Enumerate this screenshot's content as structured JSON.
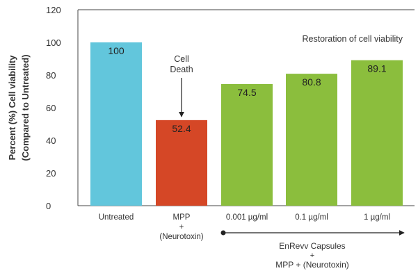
{
  "chart_data": {
    "type": "bar",
    "ylabel_line1": "Percent (%) Cell viability",
    "ylabel_line2": "(Compared to Untreated)",
    "ylim": [
      0,
      120
    ],
    "yticks": [
      "0",
      "20",
      "40",
      "60",
      "80",
      "100",
      "120"
    ],
    "grid": false,
    "bars": [
      {
        "label_lines": [
          "Untreated"
        ],
        "value": 100,
        "value_label": "100",
        "color": "#62c6dc"
      },
      {
        "label_lines": [
          "MPP",
          "+",
          "(Neurotoxin)"
        ],
        "value": 52.4,
        "value_label": "52.4",
        "color": "#d54726"
      },
      {
        "label_lines": [
          "0.001 µg/ml"
        ],
        "value": 74.5,
        "value_label": "74.5",
        "color": "#8bbe3d"
      },
      {
        "label_lines": [
          "0.1 µg/ml"
        ],
        "value": 80.8,
        "value_label": "80.8",
        "color": "#8bbe3d"
      },
      {
        "label_lines": [
          "1 µg/ml"
        ],
        "value": 89.1,
        "value_label": "89.1",
        "color": "#8bbe3d"
      }
    ],
    "annotations": {
      "restoration": "Restoration of cell viability",
      "cell_death_line1": "Cell",
      "cell_death_line2": "Death",
      "group_line1": "EnRevv Capsules",
      "group_line2": "+",
      "group_line3": "MPP + (Neurotoxin)"
    }
  }
}
